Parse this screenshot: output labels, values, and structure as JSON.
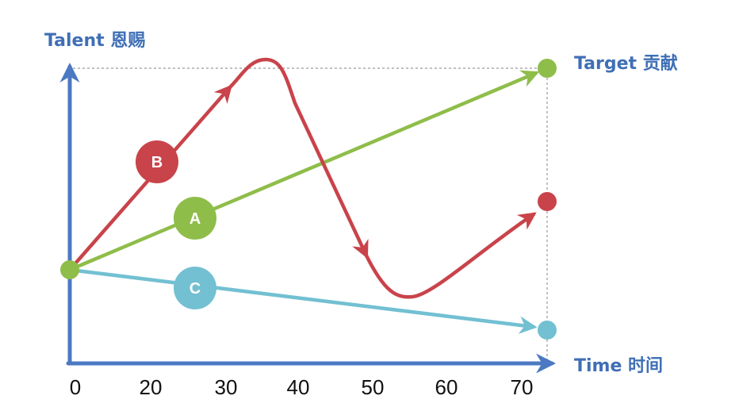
{
  "axes": {
    "y_label": "Talent 恩赐",
    "x_label": "Time 时间",
    "target_label": "Target 贡献",
    "x_ticks": [
      "0",
      "20",
      "30",
      "40",
      "50",
      "60",
      "70"
    ]
  },
  "paths": [
    {
      "id": "A",
      "label": "A",
      "color": "#8fbd4a"
    },
    {
      "id": "B",
      "label": "B",
      "color": "#c9434a"
    },
    {
      "id": "C",
      "label": "C",
      "color": "#72c0d2"
    }
  ],
  "colors": {
    "axis": "#4b79c3",
    "guide": "#999999",
    "background": "#ffffff"
  }
}
